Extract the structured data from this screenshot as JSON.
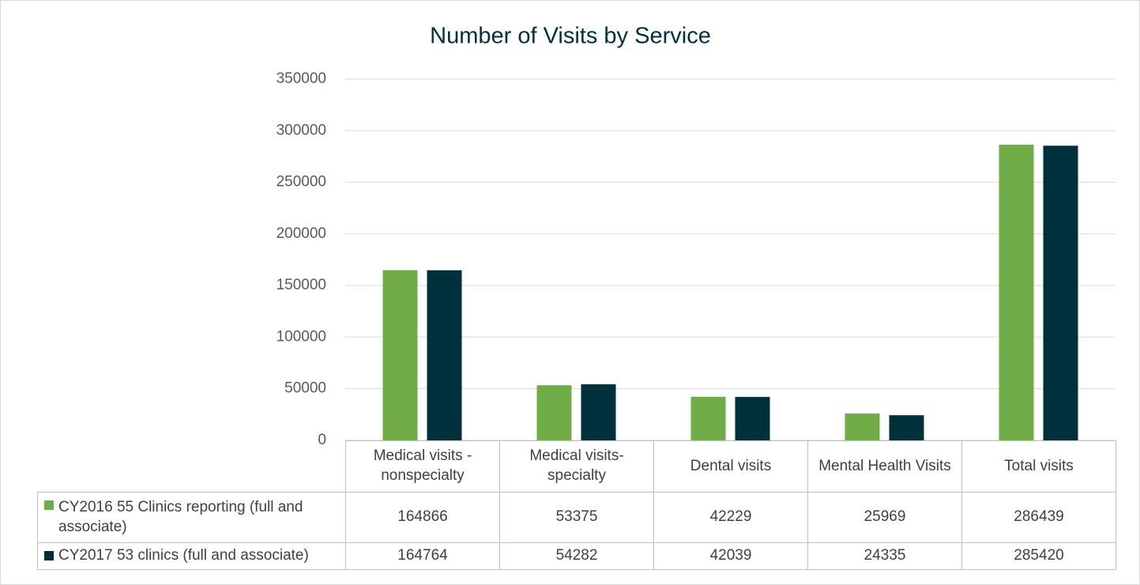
{
  "chart_data": {
    "type": "bar",
    "title": "Number of Visits by Service",
    "categories": [
      "Medical visits - nonspecialty",
      "Medical visits- specialty",
      "Dental visits",
      "Mental Health Visits",
      "Total visits"
    ],
    "series": [
      {
        "name": "CY2016 55 Clinics reporting (full and associate)",
        "color": "#70ad47",
        "values": [
          164866,
          53375,
          42229,
          25969,
          286439
        ]
      },
      {
        "name": "CY2017 53 clinics (full and associate)",
        "color": "#00313a",
        "values": [
          164764,
          54282,
          42039,
          24335,
          285420
        ]
      }
    ],
    "ylim": [
      0,
      350000
    ],
    "yticks": [
      0,
      50000,
      100000,
      150000,
      200000,
      250000,
      300000,
      350000
    ],
    "grid": true
  }
}
